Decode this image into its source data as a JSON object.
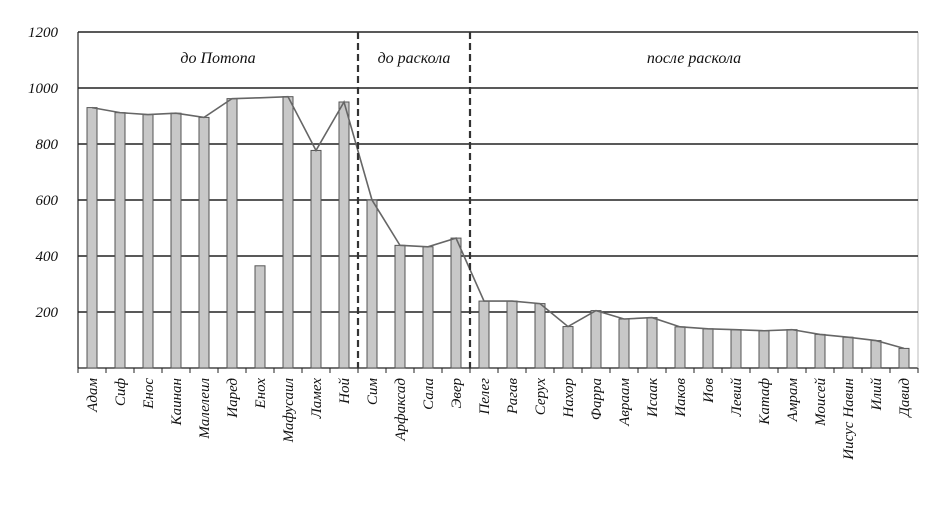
{
  "chart_data": {
    "type": "bar",
    "title": "",
    "xlabel": "",
    "ylabel": "",
    "ylim": [
      0,
      1200
    ],
    "yticks": [
      200,
      400,
      600,
      800,
      1000,
      1200
    ],
    "grid": true,
    "categories": [
      "Адам",
      "Сиф",
      "Енос",
      "Каинан",
      "Малелеил",
      "Иаред",
      "Енох",
      "Мафусаил",
      "Ламех",
      "Ной",
      "Сим",
      "Арфаксад",
      "Сала",
      "Эвер",
      "Пелег",
      "Рагав",
      "Серух",
      "Нахор",
      "Фарра",
      "Авраам",
      "Исаак",
      "Иаков",
      "Иов",
      "Левий",
      "Катаф",
      "Амрам",
      "Моисей",
      "Иисус Навин",
      "Илий",
      "Давид"
    ],
    "values": [
      930,
      912,
      905,
      910,
      895,
      962,
      365,
      969,
      777,
      950,
      600,
      438,
      433,
      464,
      239,
      239,
      230,
      148,
      205,
      175,
      180,
      147,
      140,
      137,
      133,
      137,
      120,
      110,
      98,
      70
    ],
    "trend_line": [
      930,
      912,
      905,
      910,
      895,
      962,
      965,
      969,
      777,
      950,
      600,
      438,
      433,
      464,
      239,
      239,
      230,
      148,
      205,
      175,
      180,
      147,
      140,
      137,
      133,
      137,
      120,
      110,
      98,
      70
    ],
    "regions": [
      {
        "label": "до Потопа",
        "start": 0,
        "end": 9
      },
      {
        "label": "до раскола",
        "start": 10,
        "end": 13
      },
      {
        "label": "после раскола",
        "start": 14,
        "end": 29
      }
    ],
    "colors": {
      "bar_fill": "#c8c8c8",
      "bar_stroke": "#555555",
      "grid": "#222222",
      "line": "#666666",
      "divider": "#333333"
    }
  }
}
